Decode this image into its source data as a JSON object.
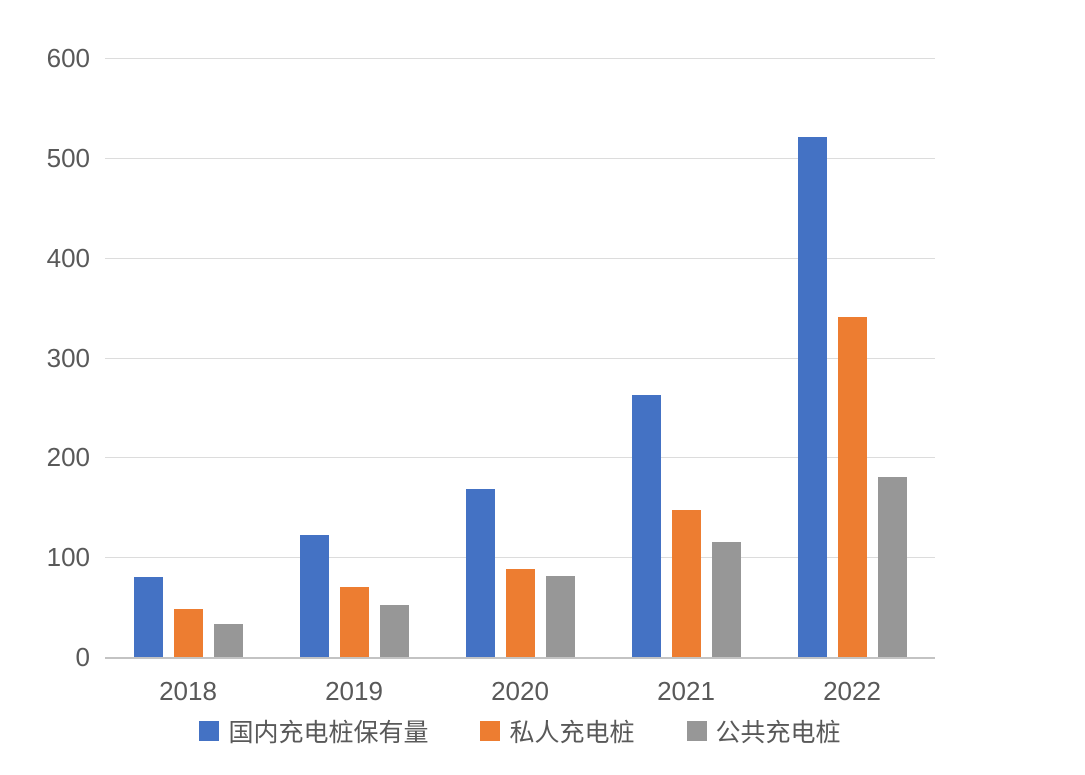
{
  "chart_data": {
    "type": "bar",
    "title": "",
    "xlabel": "",
    "ylabel": "",
    "categories": [
      "2018",
      "2019",
      "2020",
      "2021",
      "2022"
    ],
    "series": [
      {
        "name": "国内充电桩保有量",
        "color": "#4472C4",
        "values": [
          80,
          122,
          168,
          262,
          521
        ]
      },
      {
        "name": "私人充电桩",
        "color": "#ED7D31",
        "values": [
          48,
          70,
          88,
          147,
          341
        ]
      },
      {
        "name": "公共充电桩",
        "color": "#979797",
        "values": [
          33,
          52,
          81,
          115,
          180
        ]
      }
    ],
    "ylim": [
      0,
      600
    ],
    "yticks": [
      0,
      100,
      200,
      300,
      400,
      500,
      600
    ],
    "ytick_labels": [
      "0",
      "100",
      "200",
      "300",
      "400",
      "500",
      "600"
    ],
    "grid": true,
    "legend_position": "bottom",
    "colors": {
      "gridline": "#dcdcdc",
      "axis_line": "#c3c3c3",
      "tick_text": "#595959",
      "background": "#ffffff"
    }
  }
}
